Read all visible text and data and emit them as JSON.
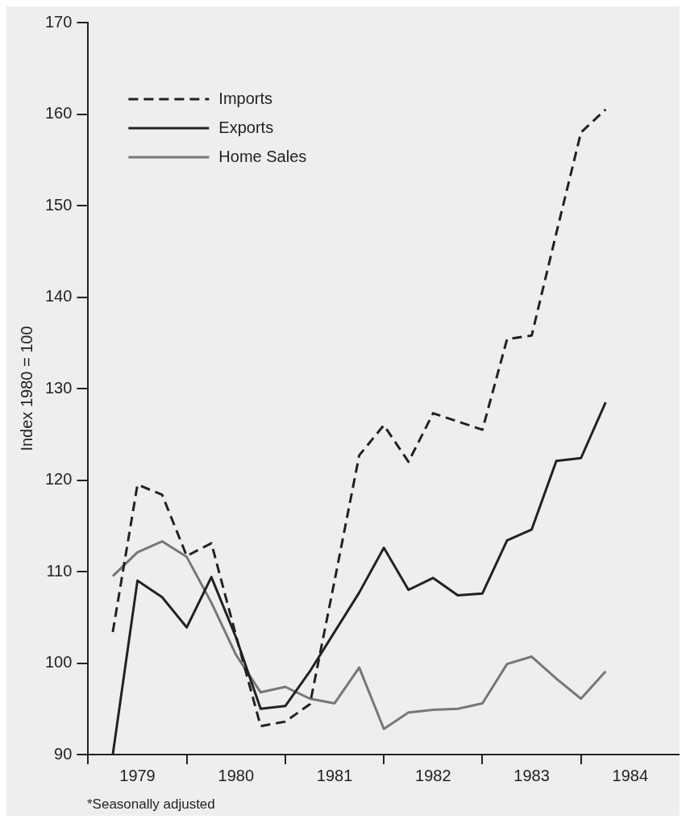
{
  "chart_data": {
    "type": "line",
    "ylabel": "Index 1980 = 100",
    "annotations": [
      "*Seasonally adjusted"
    ],
    "x": [
      1979.25,
      1979.5,
      1979.75,
      1980,
      1980.25,
      1980.5,
      1980.75,
      1981,
      1981.25,
      1981.5,
      1981.75,
      1982,
      1982.25,
      1982.5,
      1982.75,
      1983,
      1983.25,
      1983.5,
      1983.75,
      1984,
      1984.25
    ],
    "series": [
      {
        "name": "Imports",
        "color": "#222222",
        "line_style": "dashed",
        "values": [
          103.4,
          119.5,
          118.4,
          111.7,
          113.1,
          103,
          93.1,
          93.6,
          95.5,
          109,
          122.7,
          126,
          122,
          127.3,
          126.4,
          125.5,
          135.4,
          135.8,
          147,
          158,
          160.5
        ]
      },
      {
        "name": "Exports",
        "color": "#222222",
        "line_style": "solid",
        "values": [
          90,
          109,
          107.2,
          103.9,
          109.4,
          102.8,
          95,
          95.3,
          99.1,
          103.4,
          107.7,
          112.6,
          108,
          109.3,
          107.4,
          107.6,
          113.4,
          114.6,
          122.1,
          122.4,
          128.5
        ]
      },
      {
        "name": "Home Sales",
        "color": "#777777",
        "line_style": "solid",
        "values": [
          109.5,
          112.1,
          113.3,
          111.6,
          106.6,
          100.9,
          96.8,
          97.4,
          96.1,
          95.6,
          99.5,
          92.8,
          94.6,
          94.9,
          95,
          95.6,
          99.9,
          100.7,
          98.3,
          96.1,
          99.1
        ]
      }
    ],
    "xlim": [
      1979,
      1985
    ],
    "xticks": [
      {
        "value": 1979,
        "label": null
      },
      {
        "value": 1979.5,
        "label": "1979"
      },
      {
        "value": 1980,
        "label": null
      },
      {
        "value": 1980.5,
        "label": "1980"
      },
      {
        "value": 1981,
        "label": null
      },
      {
        "value": 1981.5,
        "label": "1981"
      },
      {
        "value": 1982,
        "label": null
      },
      {
        "value": 1982.5,
        "label": "1982"
      },
      {
        "value": 1983,
        "label": null
      },
      {
        "value": 1983.5,
        "label": "1983"
      },
      {
        "value": 1984,
        "label": null
      },
      {
        "value": 1984.5,
        "label": "1984"
      }
    ],
    "ylim": [
      90,
      170
    ],
    "yticks": [
      90,
      100,
      110,
      120,
      130,
      140,
      150,
      160,
      170
    ],
    "grid": false,
    "legend": "top left",
    "marker": "none"
  }
}
